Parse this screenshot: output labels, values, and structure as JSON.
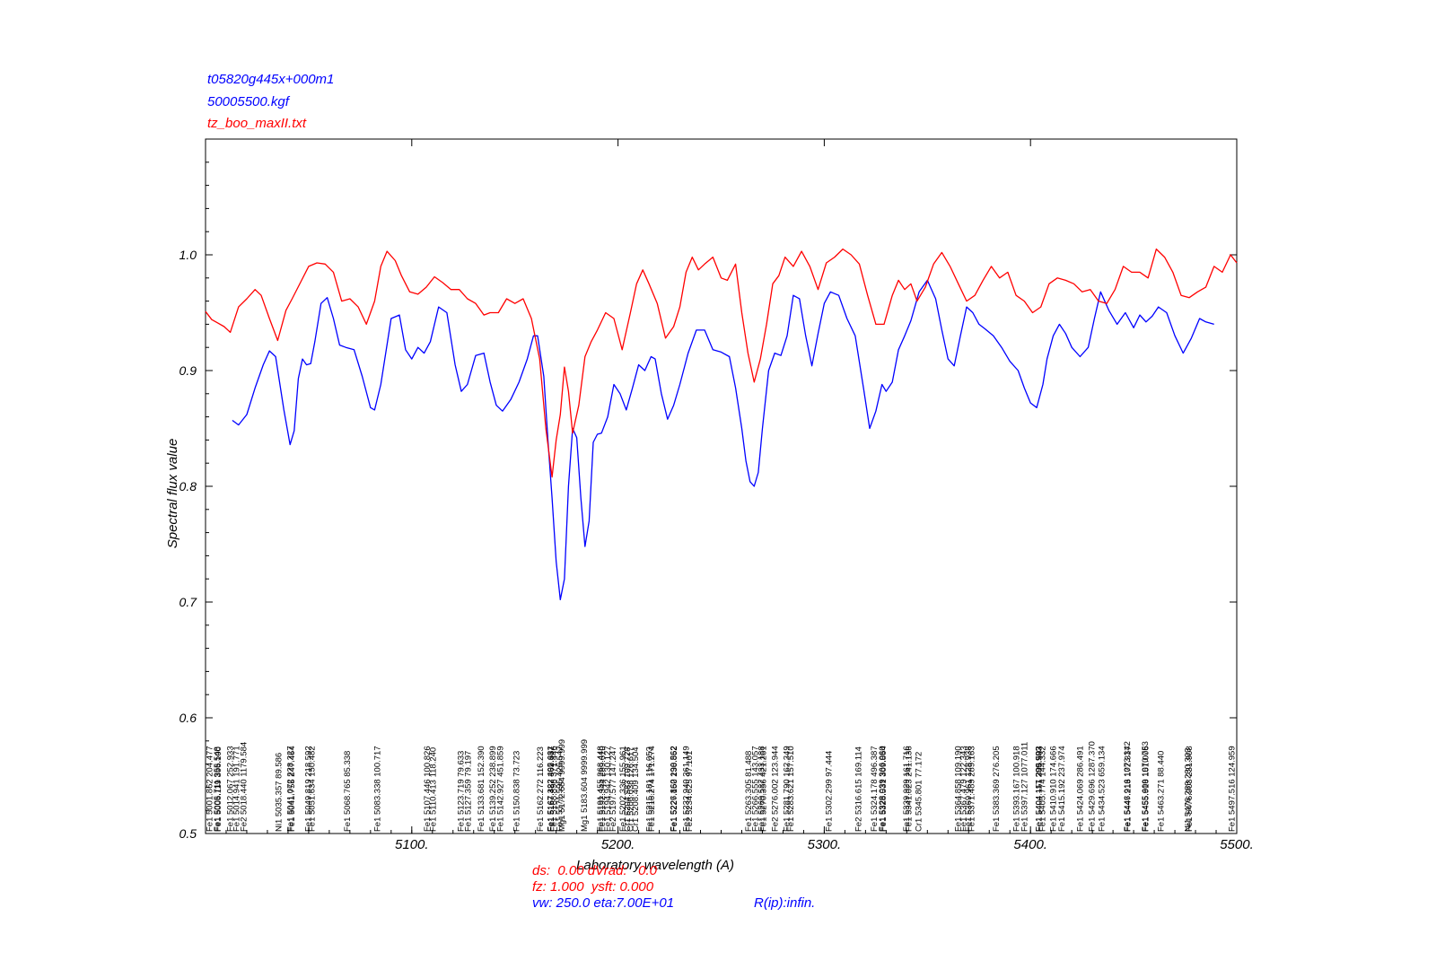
{
  "header": {
    "line1": "t05820g445x+000m1",
    "line2": "50005500.kgf",
    "line3": "tz_boo_maxII.txt"
  },
  "footer": {
    "line1": "ds:  0.00 dVrad:   0.0",
    "line2": "fz: 1.000  ysft: 0.000",
    "line3a": "vw: 250.0 eta:7.00E+01",
    "line3b": "R(ip):infin."
  },
  "colors": {
    "model": "#0000ff",
    "observed": "#ff0000",
    "axes": "#000000"
  },
  "chart_data": {
    "type": "line",
    "title": "",
    "xlabel": "Laboratory wavelength (A)",
    "ylabel": "Spectral flux value",
    "xlim": [
      5000,
      5500
    ],
    "ylim": [
      0.5,
      1.1
    ],
    "xticks": [
      5100,
      5200,
      5300,
      5400,
      5500
    ],
    "xtick_labels": [
      "5100.",
      "5200.",
      "5300.",
      "5400.",
      "5500."
    ],
    "yticks": [
      0.5,
      0.6,
      0.7,
      0.8,
      0.9,
      1.0
    ],
    "ytick_labels": [
      "0.5",
      "0.6",
      "0.7",
      "0.8",
      "0.9",
      "1.0"
    ],
    "grid": false,
    "series": [
      {
        "name": "t05820g445x+000m1",
        "color": "#0000ff",
        "x": [
          5013,
          5016,
          5020,
          5024,
          5028,
          5031,
          5034,
          5038,
          5041,
          5043,
          5045,
          5047,
          5049,
          5051,
          5053,
          5056,
          5059,
          5062,
          5065,
          5068,
          5072,
          5076,
          5080,
          5082,
          5085,
          5090,
          5094,
          5097,
          5100,
          5103,
          5106,
          5109,
          5113,
          5117,
          5121,
          5124,
          5127,
          5131,
          5135,
          5138,
          5141,
          5144,
          5148,
          5152,
          5156,
          5159,
          5161,
          5164,
          5166,
          5168,
          5170,
          5172,
          5174,
          5176,
          5178,
          5180,
          5182,
          5184,
          5186,
          5188,
          5190,
          5192,
          5195,
          5198,
          5201,
          5204,
          5207,
          5210,
          5213,
          5216,
          5218,
          5221,
          5224,
          5227,
          5230,
          5234,
          5238,
          5242,
          5246,
          5250,
          5254,
          5257,
          5260,
          5262,
          5264,
          5266,
          5268,
          5270,
          5273,
          5276,
          5279,
          5282,
          5285,
          5288,
          5291,
          5294,
          5297,
          5300,
          5303,
          5307,
          5311,
          5315,
          5319,
          5322,
          5325,
          5328,
          5330,
          5333,
          5336,
          5339,
          5342,
          5346,
          5350,
          5354,
          5357,
          5360,
          5363,
          5366,
          5369,
          5372,
          5375,
          5378,
          5382,
          5386,
          5390,
          5394,
          5397,
          5400,
          5403,
          5406,
          5408,
          5411,
          5414,
          5417,
          5420,
          5424,
          5428,
          5431,
          5434,
          5438,
          5442,
          5446,
          5450,
          5453,
          5456,
          5459,
          5462,
          5466,
          5470,
          5474,
          5478,
          5482,
          5485,
          5489
        ],
        "y": [
          0.857,
          0.853,
          0.862,
          0.885,
          0.905,
          0.917,
          0.912,
          0.866,
          0.836,
          0.848,
          0.893,
          0.91,
          0.905,
          0.906,
          0.925,
          0.958,
          0.963,
          0.945,
          0.922,
          0.92,
          0.918,
          0.895,
          0.868,
          0.866,
          0.888,
          0.945,
          0.948,
          0.918,
          0.91,
          0.92,
          0.915,
          0.925,
          0.955,
          0.95,
          0.905,
          0.882,
          0.888,
          0.913,
          0.915,
          0.89,
          0.87,
          0.865,
          0.875,
          0.89,
          0.91,
          0.93,
          0.93,
          0.895,
          0.84,
          0.79,
          0.735,
          0.702,
          0.72,
          0.8,
          0.85,
          0.842,
          0.79,
          0.748,
          0.77,
          0.838,
          0.845,
          0.846,
          0.86,
          0.888,
          0.88,
          0.866,
          0.885,
          0.905,
          0.9,
          0.912,
          0.91,
          0.88,
          0.858,
          0.87,
          0.888,
          0.915,
          0.935,
          0.935,
          0.918,
          0.916,
          0.912,
          0.885,
          0.85,
          0.822,
          0.804,
          0.8,
          0.812,
          0.85,
          0.9,
          0.915,
          0.913,
          0.93,
          0.965,
          0.962,
          0.93,
          0.904,
          0.932,
          0.958,
          0.968,
          0.965,
          0.945,
          0.93,
          0.885,
          0.85,
          0.865,
          0.888,
          0.882,
          0.89,
          0.918,
          0.93,
          0.943,
          0.968,
          0.978,
          0.962,
          0.935,
          0.91,
          0.904,
          0.93,
          0.955,
          0.95,
          0.94,
          0.936,
          0.93,
          0.92,
          0.908,
          0.9,
          0.885,
          0.872,
          0.868,
          0.888,
          0.91,
          0.93,
          0.94,
          0.932,
          0.92,
          0.912,
          0.92,
          0.945,
          0.968,
          0.952,
          0.94,
          0.95,
          0.937,
          0.948,
          0.942,
          0.947,
          0.955,
          0.95,
          0.93,
          0.915,
          0.928,
          0.945,
          0.942,
          0.94
        ]
      },
      {
        "name": "tz_boo_maxII.txt",
        "color": "#ff0000",
        "x": [
          5000,
          5003,
          5006,
          5009,
          5012,
          5016,
          5020,
          5024,
          5027,
          5031,
          5035,
          5039,
          5042,
          5046,
          5050,
          5054,
          5058,
          5062,
          5066,
          5070,
          5074,
          5078,
          5082,
          5085,
          5088,
          5092,
          5095,
          5099,
          5103,
          5107,
          5111,
          5115,
          5119,
          5123,
          5127,
          5131,
          5135,
          5138,
          5142,
          5146,
          5150,
          5154,
          5158,
          5162,
          5165,
          5168,
          5170,
          5172,
          5174,
          5176,
          5178,
          5181,
          5184,
          5187,
          5190,
          5194,
          5198,
          5202,
          5206,
          5209,
          5212,
          5215,
          5219,
          5223,
          5227,
          5230,
          5233,
          5236,
          5239,
          5242,
          5246,
          5250,
          5253,
          5257,
          5260,
          5263,
          5266,
          5269,
          5272,
          5275,
          5278,
          5281,
          5285,
          5289,
          5293,
          5297,
          5301,
          5305,
          5309,
          5313,
          5317,
          5321,
          5325,
          5329,
          5333,
          5336,
          5339,
          5342,
          5345,
          5349,
          5353,
          5357,
          5361,
          5365,
          5369,
          5373,
          5377,
          5381,
          5385,
          5389,
          5393,
          5397,
          5401,
          5405,
          5409,
          5413,
          5417,
          5421,
          5425,
          5429,
          5433,
          5437,
          5441,
          5445,
          5449,
          5453,
          5457,
          5461,
          5465,
          5469,
          5473,
          5477,
          5481,
          5485,
          5489,
          5493,
          5497,
          5500
        ],
        "y": [
          0.951,
          0.944,
          0.941,
          0.938,
          0.933,
          0.955,
          0.962,
          0.97,
          0.965,
          0.945,
          0.926,
          0.952,
          0.962,
          0.976,
          0.99,
          0.993,
          0.992,
          0.985,
          0.96,
          0.962,
          0.955,
          0.94,
          0.96,
          0.99,
          1.003,
          0.995,
          0.982,
          0.968,
          0.966,
          0.972,
          0.981,
          0.976,
          0.97,
          0.97,
          0.962,
          0.958,
          0.948,
          0.95,
          0.95,
          0.962,
          0.958,
          0.962,
          0.945,
          0.91,
          0.85,
          0.808,
          0.84,
          0.862,
          0.903,
          0.882,
          0.846,
          0.87,
          0.912,
          0.925,
          0.935,
          0.95,
          0.945,
          0.918,
          0.95,
          0.975,
          0.987,
          0.975,
          0.958,
          0.928,
          0.938,
          0.955,
          0.985,
          0.998,
          0.987,
          0.992,
          0.998,
          0.98,
          0.978,
          0.992,
          0.95,
          0.915,
          0.89,
          0.91,
          0.94,
          0.975,
          0.982,
          0.998,
          0.99,
          1.003,
          0.99,
          0.97,
          0.993,
          0.998,
          1.005,
          1.0,
          0.992,
          0.965,
          0.94,
          0.94,
          0.965,
          0.978,
          0.97,
          0.975,
          0.96,
          0.972,
          0.992,
          1.002,
          0.99,
          0.975,
          0.96,
          0.965,
          0.978,
          0.99,
          0.98,
          0.985,
          0.965,
          0.96,
          0.95,
          0.955,
          0.975,
          0.98,
          0.978,
          0.975,
          0.968,
          0.97,
          0.96,
          0.958,
          0.97,
          0.99,
          0.985,
          0.985,
          0.98,
          1.005,
          0.998,
          0.985,
          0.965,
          0.963,
          0.968,
          0.972,
          0.99,
          0.985,
          1.0,
          0.993
        ]
      }
    ],
    "line_ids": [
      {
        "x": 5001.862,
        "text": "Fe1 5001.862  204.477"
      },
      {
        "x": 5005.711,
        "text": "Fe1 5005.711  355.548"
      },
      {
        "x": 5006.119,
        "text": "Fe1 5006.119  396.100"
      },
      {
        "x": 5012.067,
        "text": "Fe1 5012.067  252.933"
      },
      {
        "x": 5014.941,
        "text": "Fe1 5014.941  191.771"
      },
      {
        "x": 5018.44,
        "text": "Fe2 5018.440 1179.584"
      },
      {
        "x": 5035.357,
        "text": "Ni1 5035.357   89.586"
      },
      {
        "x": 5041.072,
        "text": "Fe1 5041.072  228.227"
      },
      {
        "x": 5041.755,
        "text": "Fe1 5041.755  247.464"
      },
      {
        "x": 5049.819,
        "text": "Fe1 5049.819  218.592"
      },
      {
        "x": 5051.634,
        "text": "Fe1 5051.634  150.482"
      },
      {
        "x": 5068.765,
        "text": "Fe1 5068.765   85.338"
      },
      {
        "x": 5083.338,
        "text": "Fe1 5083.338  100.717"
      },
      {
        "x": 5107.446,
        "text": "Fe1 5107.446  100.826"
      },
      {
        "x": 5110.413,
        "text": "Fe1 5110.413  118.240"
      },
      {
        "x": 5123.719,
        "text": "Fe1 5123.719   79.633"
      },
      {
        "x": 5127.359,
        "text": "Fe1 5127.359   79.197"
      },
      {
        "x": 5133.681,
        "text": "Fe1 5133.681  152.390"
      },
      {
        "x": 5139.252,
        "text": "Fe1 5139.252  238.899"
      },
      {
        "x": 5142.927,
        "text": "Fe1 5142.927  451.859"
      },
      {
        "x": 5150.838,
        "text": "Fe1 5150.838   73.723"
      },
      {
        "x": 5162.272,
        "text": "Fe1 5162.272  116.223"
      },
      {
        "x": 5167.322,
        "text": "Fe1 5167.322  405.681"
      },
      {
        "x": 5167.487,
        "text": "Fe1 5167.487  362.837"
      },
      {
        "x": 5168.898,
        "text": "Fe1 5168.898  371.446"
      },
      {
        "x": 5171.595,
        "text": "Fe1 5171.595  426.547"
      },
      {
        "x": 5172.684,
        "text": "Mg1 5172.684 9999.999"
      },
      {
        "x": 5183.604,
        "text": "Mg1 5183.604 9999.999"
      },
      {
        "x": 5191.455,
        "text": "Fe1 5191.455  268.448"
      },
      {
        "x": 5192.344,
        "text": "Fe1 5192.344  289.610"
      },
      {
        "x": 5194.942,
        "text": "Fe1 5194.942  130.127"
      },
      {
        "x": 5197.577,
        "text": "Fe2 5197.577  147.247"
      },
      {
        "x": 5202.336,
        "text": "Fe1 5202.336  155.961"
      },
      {
        "x": 5204.583,
        "text": "Cr1 5204.583  109.728"
      },
      {
        "x": 5206.038,
        "text": "Cr1 5206.038  126.617"
      },
      {
        "x": 5208.409,
        "text": "Cr1 5208.409  134.504"
      },
      {
        "x": 5215.181,
        "text": "Fe1 5215.181  116.053"
      },
      {
        "x": 5216.274,
        "text": "Fe1 5216.274  171.274"
      },
      {
        "x": 5226.862,
        "text": "Fe1 5226.862  190.562"
      },
      {
        "x": 5227.15,
        "text": "Fe1 5227.150  238.852"
      },
      {
        "x": 5232.94,
        "text": "Fe1 5232.940  361.149"
      },
      {
        "x": 5234.625,
        "text": "Fe2 5234.625   97.101"
      },
      {
        "x": 5263.305,
        "text": "Fe1 5263.305   81.488"
      },
      {
        "x": 5266.555,
        "text": "Fe1 5266.555  143.057"
      },
      {
        "x": 5269.537,
        "text": "Fe1 5269.537  433.188"
      },
      {
        "x": 5270.356,
        "text": "Fe1 5270.356  421.261"
      },
      {
        "x": 5276.002,
        "text": "Fe2 5276.002  123.944"
      },
      {
        "x": 5281.79,
        "text": "Fe1 5281.790  162.349"
      },
      {
        "x": 5283.621,
        "text": "Fe1 5283.621  157.510"
      },
      {
        "x": 5302.299,
        "text": "Fe1 5302.299   97.444"
      },
      {
        "x": 5316.615,
        "text": "Fe2 5316.615  169.114"
      },
      {
        "x": 5324.178,
        "text": "Fe1 5324.178  496.387"
      },
      {
        "x": 5328.039,
        "text": "Fe1 5328.039  366.060"
      },
      {
        "x": 5328.531,
        "text": "Fe1 5328.531  309.864"
      },
      {
        "x": 5339.929,
        "text": "Fe1 5339.929  161.716"
      },
      {
        "x": 5341.023,
        "text": "Fe1 5341.023  241.136"
      },
      {
        "x": 5345.801,
        "text": "Cr1 5345.801   77.172"
      },
      {
        "x": 5364.858,
        "text": "Fe1 5364.858  109.190"
      },
      {
        "x": 5367.479,
        "text": "Fe1 5367.479  122.343"
      },
      {
        "x": 5369.961,
        "text": "Fe1 5369.961  128.938"
      },
      {
        "x": 5371.489,
        "text": "Fe1 5371.489  289.163"
      },
      {
        "x": 5383.369,
        "text": "Fe1 5383.369  276.205"
      },
      {
        "x": 5393.167,
        "text": "Fe1 5393.167  100.918"
      },
      {
        "x": 5397.127,
        "text": "Fe1 5397.127 1077.011"
      },
      {
        "x": 5404.117,
        "text": "Fe1 5404.117  299.993"
      },
      {
        "x": 5404.151,
        "text": "Fe1 5404.151  306.503"
      },
      {
        "x": 5405.774,
        "text": "Fe1 5405.774  144.332"
      },
      {
        "x": 5410.91,
        "text": "Fe1 5410.910  174.666"
      },
      {
        "x": 5415.192,
        "text": "Fe1 5415.192  237.974"
      },
      {
        "x": 5424.069,
        "text": "Fe1 5424.069  286.491"
      },
      {
        "x": 5429.696,
        "text": "Fe1 5429.696 1287.370"
      },
      {
        "x": 5434.523,
        "text": "Fe1 5434.523  659.134"
      },
      {
        "x": 5446.916,
        "text": "Fe1 5446.916 1073.342"
      },
      {
        "x": 5447.213,
        "text": "Fe1 5447.213  172.317"
      },
      {
        "x": 5455.609,
        "text": "Fe1 5455.609 1070.753"
      },
      {
        "x": 5455.916,
        "text": "Fe1 5455.916  151.006"
      },
      {
        "x": 5463.271,
        "text": "Fe1 5463.271   88.440"
      },
      {
        "x": 5476.289,
        "text": "Ni1 5476.289  230.303"
      },
      {
        "x": 5476.903,
        "text": "Fe1 5476.903  231.908"
      },
      {
        "x": 5497.516,
        "text": "Fe1 5497.516  124.959"
      }
    ]
  }
}
